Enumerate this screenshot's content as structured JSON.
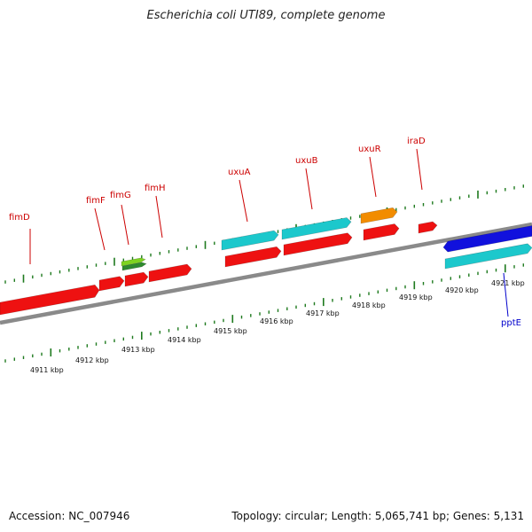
{
  "title": "Escherichia coli UTI89, complete genome",
  "accession_text": "Accession: NC_007946",
  "topology_text": "Topology: circular; Length: 5,065,741 bp; Genes: 5,131",
  "colors": {
    "backbone": "#8a8a8a",
    "tick": "#1e7a1e",
    "gene_label_fwd": "#cc0000",
    "gene_label_rev": "#0000cc",
    "red_gene": "#ee1111",
    "cyan_gene": "#1cc8cc",
    "blue_gene": "#1111dd",
    "orange_gene": "#f28c00",
    "green_gene": "#7ed321"
  },
  "scale_labels": [
    "4911 kbp",
    "4912 kbp",
    "4913 kbp",
    "4914 kbp",
    "4915 kbp",
    "4916 kbp",
    "4917 kbp",
    "4918 kbp",
    "4919 kbp",
    "4920 kbp",
    "4921 kbp"
  ],
  "gene_labels": [
    {
      "name": "fimD",
      "strand": "forward"
    },
    {
      "name": "fimF",
      "strand": "forward"
    },
    {
      "name": "fimG",
      "strand": "forward"
    },
    {
      "name": "fimH",
      "strand": "forward"
    },
    {
      "name": "uxuA",
      "strand": "forward"
    },
    {
      "name": "uxuB",
      "strand": "forward"
    },
    {
      "name": "uxuR",
      "strand": "forward"
    },
    {
      "name": "iraD",
      "strand": "forward"
    },
    {
      "name": "pptE",
      "strand": "reverse"
    }
  ]
}
